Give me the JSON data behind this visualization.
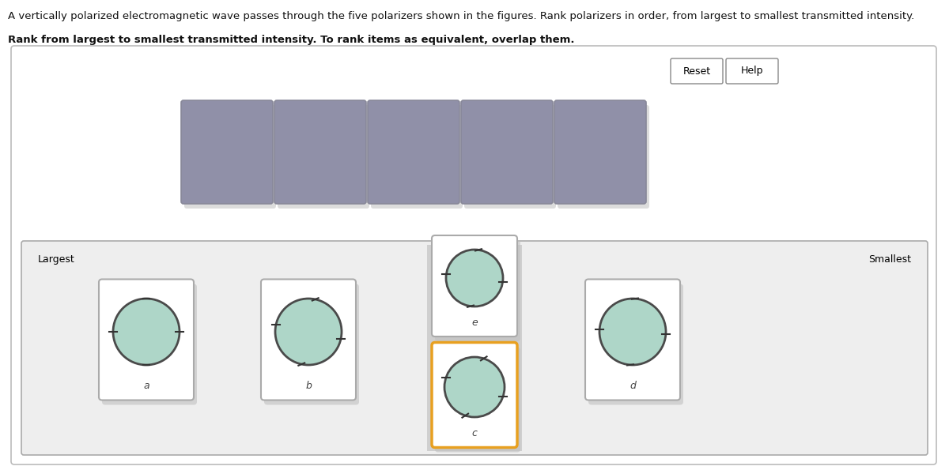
{
  "title_line1": "A vertically polarized electromagnetic wave passes through the five polarizers shown in the figures. Rank polarizers in order, from largest to smallest transmitted intensity.",
  "title_line2": "Rank from largest to smallest transmitted intensity. To rank items as equivalent, overlap them.",
  "outer_border": "#bbbbbb",
  "outer_bg": "#ffffff",
  "slot_fill": "#9090a8",
  "slot_edge": "#888899",
  "panel_bg": "#eeeeee",
  "panel_border": "#aaaaaa",
  "card_bg": "#ffffff",
  "card_border": "#aaaaaa",
  "card_orange_border": "#e8a020",
  "highlight_col_bg": "#c8c8c8",
  "ellipse_fill": "#aed6c8",
  "ellipse_edge": "#4a4a4a",
  "shadow_color": "#c0c0c0",
  "button_border": "#888888",
  "text_color": "#111111",
  "reset_text": "Reset",
  "help_text": "Help",
  "largest_text": "Largest",
  "smallest_text": "Smallest"
}
